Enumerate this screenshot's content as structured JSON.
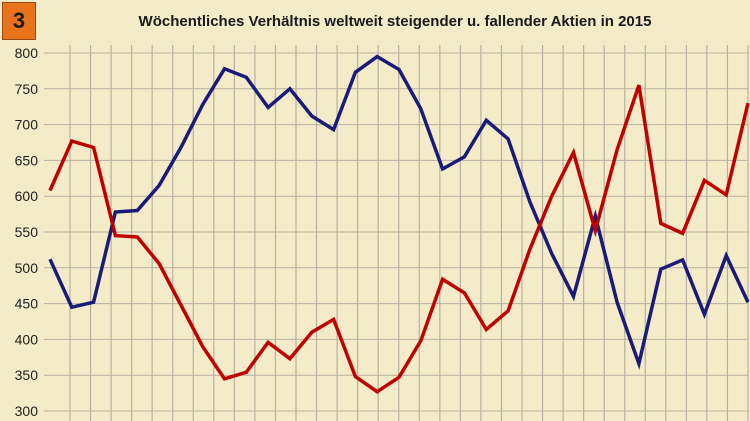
{
  "badge": "3",
  "chart_data": {
    "type": "line",
    "title": "Wöchentliches Verhältnis weltweit steigender u. fallender Aktien in 2015",
    "xlabel": "",
    "ylabel": "",
    "ylim": [
      300,
      800
    ],
    "yticks": [
      300,
      350,
      400,
      450,
      500,
      550,
      600,
      650,
      700,
      750,
      800
    ],
    "grid": true,
    "legend": "none",
    "series": [
      {
        "color": "#1a1a7a",
        "values": [
          512,
          445,
          452,
          578,
          580,
          615,
          668,
          728,
          778,
          766,
          724,
          750,
          712,
          693,
          773,
          795,
          777,
          722,
          638,
          655,
          706,
          680,
          592,
          520,
          460,
          572,
          452,
          366,
          498,
          511,
          435,
          517,
          452
        ]
      },
      {
        "color": "#c00000",
        "values": [
          608,
          677,
          668,
          545,
          543,
          506,
          448,
          390,
          345,
          354,
          396,
          373,
          410,
          428,
          348,
          327,
          347,
          398,
          484,
          465,
          414,
          440,
          526,
          600,
          661,
          552,
          665,
          755,
          562,
          548,
          622,
          602,
          730
        ]
      }
    ]
  }
}
